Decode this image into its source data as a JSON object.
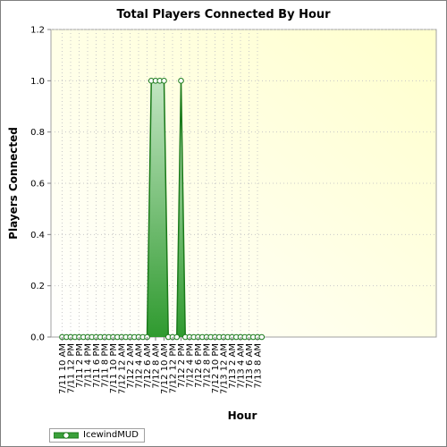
{
  "chart_data": {
    "type": "area",
    "title": "Total Players Connected By Hour",
    "xlabel": "Hour",
    "ylabel": "Players Connected",
    "ylim": [
      0,
      1.2
    ],
    "yticks": [
      "0.0",
      "0.2",
      "0.4",
      "0.6",
      "0.8",
      "1.0",
      "1.2"
    ],
    "grid": true,
    "legend_position": "bottom-left",
    "x_tick_labels": [
      "7/11 10 AM",
      "7/11 12 PM",
      "7/11 2 PM",
      "7/11 4 PM",
      "7/11 6 PM",
      "7/11 8 PM",
      "7/11 10 PM",
      "7/12 12 AM",
      "7/12 2 AM",
      "7/12 4 AM",
      "7/12 6 AM",
      "7/12 8 AM",
      "7/12 10 AM",
      "7/12 12 PM",
      "7/12 2 PM",
      "7/12 4 PM",
      "7/12 6 PM",
      "7/12 8 PM",
      "7/12 10 PM",
      "7/13 12 AM",
      "7/13 2 AM",
      "7/13 4 AM",
      "7/13 6 AM",
      "7/13 8 AM"
    ],
    "series": [
      {
        "name": "IcewindMUD",
        "color": "#2a8a2a",
        "x": [
          "7/11 10 AM",
          "7/11 11 AM",
          "7/11 12 PM",
          "7/11 1 PM",
          "7/11 2 PM",
          "7/11 3 PM",
          "7/11 4 PM",
          "7/11 5 PM",
          "7/11 6 PM",
          "7/11 7 PM",
          "7/11 8 PM",
          "7/11 9 PM",
          "7/11 10 PM",
          "7/11 11 PM",
          "7/12 12 AM",
          "7/12 1 AM",
          "7/12 2 AM",
          "7/12 3 AM",
          "7/12 4 AM",
          "7/12 5 AM",
          "7/12 6 AM",
          "7/12 7 AM",
          "7/12 8 AM",
          "7/12 9 AM",
          "7/12 10 AM",
          "7/12 11 AM",
          "7/12 12 PM",
          "7/12 1 PM",
          "7/12 2 PM",
          "7/12 3 PM",
          "7/12 4 PM",
          "7/12 5 PM",
          "7/12 6 PM",
          "7/12 7 PM",
          "7/12 8 PM",
          "7/12 9 PM",
          "7/12 10 PM",
          "7/12 11 PM",
          "7/13 12 AM",
          "7/13 1 AM",
          "7/13 2 AM",
          "7/13 3 AM",
          "7/13 4 AM",
          "7/13 5 AM",
          "7/13 6 AM",
          "7/13 7 AM",
          "7/13 8 AM",
          "7/13 9 AM"
        ],
        "values": [
          0,
          0,
          0,
          0,
          0,
          0,
          0,
          0,
          0,
          0,
          0,
          0,
          0,
          0,
          0,
          0,
          0,
          0,
          0,
          0,
          0,
          1,
          1,
          1,
          1,
          0,
          0,
          0,
          1,
          0,
          0,
          0,
          0,
          0,
          0,
          0,
          0,
          0,
          0,
          0,
          0,
          0,
          0,
          0,
          0,
          0,
          0,
          0
        ]
      }
    ]
  }
}
